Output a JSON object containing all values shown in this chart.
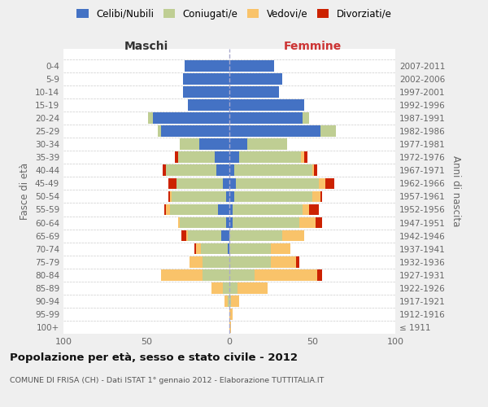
{
  "age_groups": [
    "100+",
    "95-99",
    "90-94",
    "85-89",
    "80-84",
    "75-79",
    "70-74",
    "65-69",
    "60-64",
    "55-59",
    "50-54",
    "45-49",
    "40-44",
    "35-39",
    "30-34",
    "25-29",
    "20-24",
    "15-19",
    "10-14",
    "5-9",
    "0-4"
  ],
  "birth_years": [
    "≤ 1911",
    "1912-1916",
    "1917-1921",
    "1922-1926",
    "1927-1931",
    "1932-1936",
    "1937-1941",
    "1942-1946",
    "1947-1951",
    "1952-1956",
    "1957-1961",
    "1962-1966",
    "1967-1971",
    "1972-1976",
    "1977-1981",
    "1982-1986",
    "1987-1991",
    "1992-1996",
    "1997-2001",
    "2002-2006",
    "2007-2011"
  ],
  "colors": {
    "celibi": "#4472C4",
    "coniugati": "#BFCE93",
    "vedovi": "#F9C36A",
    "divorziati": "#CC2200"
  },
  "maschi": {
    "celibi": [
      0,
      0,
      0,
      0,
      0,
      0,
      1,
      5,
      2,
      7,
      2,
      4,
      8,
      9,
      18,
      41,
      46,
      25,
      28,
      28,
      27
    ],
    "coniugati": [
      0,
      0,
      1,
      4,
      16,
      16,
      16,
      20,
      28,
      29,
      33,
      28,
      30,
      22,
      12,
      2,
      3,
      0,
      0,
      0,
      0
    ],
    "vedovi": [
      0,
      0,
      2,
      7,
      25,
      8,
      3,
      1,
      1,
      2,
      1,
      0,
      0,
      0,
      0,
      0,
      0,
      0,
      0,
      0,
      0
    ],
    "divorziati": [
      0,
      0,
      0,
      0,
      0,
      0,
      1,
      3,
      0,
      1,
      1,
      5,
      2,
      2,
      0,
      0,
      0,
      0,
      0,
      0,
      0
    ]
  },
  "femmine": {
    "celibi": [
      0,
      0,
      0,
      0,
      0,
      0,
      0,
      0,
      2,
      2,
      3,
      4,
      3,
      6,
      11,
      55,
      44,
      45,
      30,
      32,
      27
    ],
    "coniugati": [
      0,
      0,
      1,
      5,
      15,
      25,
      25,
      32,
      40,
      42,
      47,
      50,
      47,
      37,
      24,
      9,
      4,
      0,
      0,
      0,
      0
    ],
    "vedovi": [
      1,
      2,
      5,
      18,
      38,
      15,
      12,
      13,
      10,
      4,
      5,
      4,
      1,
      2,
      0,
      0,
      0,
      0,
      0,
      0,
      0
    ],
    "divorziati": [
      0,
      0,
      0,
      0,
      3,
      2,
      0,
      0,
      4,
      6,
      1,
      5,
      2,
      2,
      0,
      0,
      0,
      0,
      0,
      0,
      0
    ]
  },
  "title": "Popolazione per età, sesso e stato civile - 2012",
  "subtitle": "COMUNE DI FRISA (CH) - Dati ISTAT 1° gennaio 2012 - Elaborazione TUTTITALIA.IT",
  "xlabel_left": "Maschi",
  "xlabel_right": "Femmine",
  "ylabel_left": "Fasce di età",
  "ylabel_right": "Anni di nascita",
  "xlim": 100,
  "legend_labels": [
    "Celibi/Nubili",
    "Coniugati/e",
    "Vedovi/e",
    "Divorziati/e"
  ],
  "background_color": "#efefef",
  "plot_background": "#ffffff",
  "grid_color": "#cccccc"
}
